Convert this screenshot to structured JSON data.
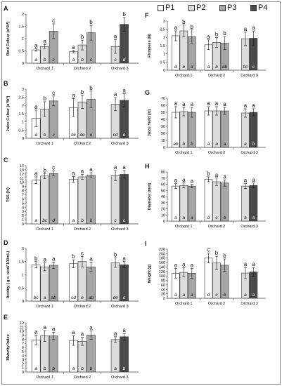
{
  "legend": [
    {
      "label": "P1",
      "color": "#ffffff"
    },
    {
      "label": "P2",
      "color": "#dcdcdc"
    },
    {
      "label": "P3",
      "color": "#a6a6a6"
    },
    {
      "label": "P4",
      "color": "#4a4a4a"
    }
  ],
  "chart_data": [
    {
      "id": "A",
      "type": "bar",
      "panel_label": "A",
      "ylabel": "Rind Colour (a*/b*)",
      "ylim": [
        0,
        2
      ],
      "yticks": [
        0,
        0.5,
        1,
        1.5,
        2
      ],
      "categories": [
        "Orchard 1",
        "Orchard 2",
        "Orchard 3"
      ],
      "series": [
        {
          "name": "P1",
          "values": [
            0.54,
            0.47,
            null
          ],
          "errors": [
            0.05,
            0.05,
            null
          ],
          "top_letters": [
            "a",
            "a",
            null
          ],
          "bottom_letters": [
            "a",
            "a",
            null
          ]
        },
        {
          "name": "P2",
          "values": [
            0.68,
            0.74,
            0.68
          ],
          "errors": [
            0.08,
            0.2,
            0.28
          ],
          "top_letters": [
            "a",
            "b",
            "a"
          ],
          "bottom_letters": [
            "b",
            "b",
            "c"
          ]
        },
        {
          "name": "P3",
          "values": [
            1.3,
            1.24,
            null
          ],
          "errors": [
            0.3,
            0.3,
            null
          ],
          "top_letters": [
            "c",
            "b",
            null
          ],
          "bottom_letters": [
            "c",
            "c",
            null
          ]
        },
        {
          "name": "P4",
          "values": [
            null,
            null,
            1.58
          ],
          "errors": [
            null,
            null,
            0.28
          ],
          "top_letters": [
            null,
            null,
            "b"
          ],
          "bottom_letters": [
            null,
            null,
            "d"
          ]
        }
      ]
    },
    {
      "id": "B",
      "type": "bar",
      "panel_label": "B",
      "ylabel": "Juice Colour (a*/b*)",
      "ylim": [
        0,
        3
      ],
      "yticks": [
        0,
        0.5,
        1,
        1.5,
        2,
        2.5,
        3
      ],
      "categories": [
        "Orchard 1",
        "Orchard 2",
        "Orchard 3"
      ],
      "series": [
        {
          "name": "P1",
          "values": [
            1.22,
            1.88,
            null
          ],
          "errors": [
            0.5,
            0.55,
            null
          ],
          "top_letters": [
            "a",
            "a",
            null
          ],
          "bottom_letters": [
            "a",
            "bc",
            null
          ]
        },
        {
          "name": "P2",
          "values": [
            1.78,
            2.22,
            2.08
          ],
          "errors": [
            0.45,
            0.4,
            0.4
          ],
          "top_letters": [
            "b",
            "b",
            "a"
          ],
          "bottom_letters": [
            "b",
            "de",
            "cd"
          ]
        },
        {
          "name": "P3",
          "values": [
            2.28,
            2.38,
            null
          ],
          "errors": [
            0.3,
            0.5,
            null
          ],
          "top_letters": [
            "c",
            "b",
            null
          ],
          "bottom_letters": [
            "c",
            "e",
            null
          ]
        },
        {
          "name": "P4",
          "values": [
            null,
            null,
            2.32
          ],
          "errors": [
            null,
            null,
            0.4
          ],
          "top_letters": [
            null,
            null,
            "a"
          ],
          "bottom_letters": [
            null,
            null,
            "e"
          ]
        }
      ]
    },
    {
      "id": "C",
      "type": "bar",
      "panel_label": "C",
      "ylabel": "TSS (%)",
      "ylim": [
        0,
        14
      ],
      "yticks": [
        0,
        1,
        2,
        3,
        4,
        5,
        6,
        7,
        8,
        9,
        10,
        11,
        12,
        13,
        14
      ],
      "categories": [
        "Orchard 1",
        "Orchard 2",
        "Orchard 3"
      ],
      "series": [
        {
          "name": "P1",
          "values": [
            10.5,
            10.7,
            null
          ],
          "errors": [
            0.8,
            0.7,
            null
          ],
          "top_letters": [
            "a",
            "a",
            null
          ],
          "bottom_letters": [
            "a",
            "a",
            null
          ]
        },
        {
          "name": "P2",
          "values": [
            11.5,
            11.3,
            11.6
          ],
          "errors": [
            0.6,
            0.6,
            1.2
          ],
          "top_letters": [
            "b",
            "a",
            "a"
          ],
          "bottom_letters": [
            "bc",
            "b",
            "c"
          ]
        },
        {
          "name": "P3",
          "values": [
            12.1,
            11.7,
            null
          ],
          "errors": [
            0.6,
            0.6,
            null
          ],
          "top_letters": [
            "c",
            "a",
            null
          ],
          "bottom_letters": [
            "d",
            "b",
            null
          ]
        },
        {
          "name": "P4",
          "values": [
            null,
            null,
            11.9
          ],
          "errors": [
            null,
            null,
            0.9
          ],
          "top_letters": [
            null,
            null,
            "a"
          ],
          "bottom_letters": [
            null,
            null,
            "c"
          ]
        }
      ]
    },
    {
      "id": "D",
      "type": "bar",
      "panel_label": "D",
      "ylabel": "Acidity ( g c. acid/ 100mL)",
      "ylim": [
        0,
        2
      ],
      "yticks": [
        0,
        0.5,
        1,
        1.5,
        2
      ],
      "categories": [
        "Orchard 1",
        "Orchard 2",
        "Orchard 3"
      ],
      "series": [
        {
          "name": "P1",
          "values": [
            1.38,
            1.42,
            null
          ],
          "errors": [
            0.12,
            0.15,
            null
          ],
          "top_letters": [
            "b",
            "b",
            null
          ],
          "bottom_letters": [
            "bc",
            "cd",
            null
          ]
        },
        {
          "name": "P2",
          "values": [
            1.3,
            1.5,
            1.46
          ],
          "errors": [
            0.15,
            0.2,
            0.18
          ],
          "top_letters": [
            "a",
            "c",
            "b"
          ],
          "bottom_letters": [
            "a",
            "e",
            "de"
          ]
        },
        {
          "name": "P3",
          "values": [
            1.36,
            1.3,
            null
          ],
          "errors": [
            0.12,
            0.18,
            null
          ],
          "top_letters": [
            "a",
            "a",
            null
          ],
          "bottom_letters": [
            "ab",
            "ab",
            null
          ]
        },
        {
          "name": "P4",
          "values": [
            null,
            null,
            1.38
          ],
          "errors": [
            null,
            null,
            0.12
          ],
          "top_letters": [
            null,
            null,
            "a"
          ],
          "bottom_letters": [
            null,
            null,
            "c"
          ]
        }
      ]
    },
    {
      "id": "E",
      "type": "bar",
      "panel_label": "E",
      "ylabel": "Maturity Index",
      "ylim": [
        0,
        12
      ],
      "yticks": [
        0,
        1,
        2,
        3,
        4,
        5,
        6,
        7,
        8,
        9,
        10,
        11,
        12
      ],
      "categories": [
        "Orchard 1",
        "Orchard 2",
        "Orchard 3"
      ],
      "series": [
        {
          "name": "P1",
          "values": [
            7.8,
            7.7,
            null
          ],
          "errors": [
            1.2,
            1.2,
            null
          ],
          "top_letters": [
            "a",
            "a",
            null
          ],
          "bottom_letters": [
            "a",
            "a",
            null
          ]
        },
        {
          "name": "P2",
          "values": [
            8.8,
            7.5,
            7.9
          ],
          "errors": [
            1.3,
            1.0,
            0.7
          ],
          "top_letters": [
            "a",
            "a",
            "a"
          ],
          "bottom_letters": [
            "b",
            "b",
            "a"
          ]
        },
        {
          "name": "P3",
          "values": [
            8.8,
            9.0,
            null
          ],
          "errors": [
            0.9,
            1.0,
            null
          ],
          "top_letters": [
            "a",
            "a",
            null
          ],
          "bottom_letters": [
            "b",
            "b",
            null
          ]
        },
        {
          "name": "P4",
          "values": [
            null,
            null,
            8.6
          ],
          "errors": [
            null,
            null,
            0.8
          ],
          "top_letters": [
            null,
            null,
            "a"
          ],
          "bottom_letters": [
            null,
            null,
            "b"
          ]
        }
      ]
    },
    {
      "id": "F",
      "type": "bar",
      "panel_label": "F",
      "ylabel": "Firmness (N)",
      "ylim": [
        0,
        3
      ],
      "yticks": [
        0,
        0.5,
        1,
        1.5,
        2,
        2.5,
        3
      ],
      "categories": [
        "Orchard 1",
        "Orchard 2",
        "Orchard 3"
      ],
      "series": [
        {
          "name": "P1",
          "values": [
            2.1,
            1.55,
            null
          ],
          "errors": [
            0.3,
            0.3,
            null
          ],
          "top_letters": [
            "a",
            "a",
            null
          ],
          "bottom_letters": [
            "d",
            "a",
            null
          ]
        },
        {
          "name": "P2",
          "values": [
            2.4,
            1.7,
            1.92
          ],
          "errors": [
            0.35,
            0.3,
            0.4
          ],
          "top_letters": [
            "b",
            "b",
            "a"
          ],
          "bottom_letters": [
            "e",
            "b",
            "bc"
          ]
        },
        {
          "name": "P3",
          "values": [
            2.05,
            1.65,
            null
          ],
          "errors": [
            0.4,
            0.4,
            null
          ],
          "top_letters": [
            "b",
            "b",
            null
          ],
          "bottom_letters": [
            "d",
            "ab",
            null
          ]
        },
        {
          "name": "P4",
          "values": [
            null,
            null,
            1.95
          ],
          "errors": [
            null,
            null,
            0.45
          ],
          "top_letters": [
            null,
            null,
            "a"
          ],
          "bottom_letters": [
            null,
            null,
            "c"
          ]
        }
      ]
    },
    {
      "id": "G",
      "type": "bar",
      "panel_label": "G",
      "ylabel": "Juice Yield (%)",
      "ylim": [
        0,
        70
      ],
      "yticks": [
        0,
        10,
        20,
        30,
        40,
        50,
        60,
        70
      ],
      "categories": [
        "Orchard 1",
        "Orchard 2",
        "Orchard 3"
      ],
      "series": [
        {
          "name": "P1",
          "values": [
            50,
            52,
            null
          ],
          "errors": [
            8,
            6,
            null
          ],
          "top_letters": [
            "a",
            "a",
            null
          ],
          "bottom_letters": [
            "ab",
            "a",
            null
          ]
        },
        {
          "name": "P2",
          "values": [
            51,
            52,
            49
          ],
          "errors": [
            6,
            6,
            6
          ],
          "top_letters": [
            "a",
            "a",
            "a"
          ],
          "bottom_letters": [
            "b",
            "a",
            "a"
          ]
        },
        {
          "name": "P3",
          "values": [
            50,
            52,
            null
          ],
          "errors": [
            7,
            5,
            null
          ],
          "top_letters": [
            "a",
            "a",
            null
          ],
          "bottom_letters": [
            "b",
            "a",
            null
          ]
        },
        {
          "name": "P4",
          "values": [
            null,
            null,
            50
          ],
          "errors": [
            null,
            null,
            5
          ],
          "top_letters": [
            null,
            null,
            "a"
          ],
          "bottom_letters": [
            null,
            null,
            "b"
          ]
        }
      ]
    },
    {
      "id": "H",
      "type": "bar",
      "panel_label": "H",
      "ylabel": "Diameter  (mm)",
      "ylim": [
        0,
        80
      ],
      "yticks": [
        0,
        10,
        20,
        30,
        40,
        50,
        60,
        70,
        80
      ],
      "categories": [
        "Orchard 1",
        "Orchard 2",
        "Orchard 3"
      ],
      "series": [
        {
          "name": "P1",
          "values": [
            57,
            68,
            null
          ],
          "errors": [
            4,
            4,
            null
          ],
          "top_letters": [
            "a",
            "b",
            null
          ],
          "bottom_letters": [
            "a",
            "d",
            null
          ]
        },
        {
          "name": "P2",
          "values": [
            58,
            64,
            57
          ],
          "errors": [
            4,
            6,
            4
          ],
          "top_letters": [
            "a",
            "a",
            "a"
          ],
          "bottom_letters": [
            "a",
            "c",
            "a"
          ]
        },
        {
          "name": "P3",
          "values": [
            57,
            62,
            null
          ],
          "errors": [
            3,
            5,
            null
          ],
          "top_letters": [
            "a",
            "a",
            null
          ],
          "bottom_letters": [
            "a",
            "b",
            null
          ]
        },
        {
          "name": "P4",
          "values": [
            null,
            null,
            58
          ],
          "errors": [
            null,
            null,
            4
          ],
          "top_letters": [
            null,
            null,
            "a"
          ],
          "bottom_letters": [
            null,
            null,
            "a"
          ]
        }
      ]
    },
    {
      "id": "I",
      "type": "bar",
      "panel_label": "I",
      "ylabel": "Weight (g)",
      "ylim": [
        0,
        220
      ],
      "yticks": [
        0,
        20,
        40,
        60,
        80,
        100,
        120,
        140,
        160,
        180,
        200,
        220
      ],
      "categories": [
        "Orchard 1",
        "Orchard 2",
        "Orchard 3"
      ],
      "series": [
        {
          "name": "P1",
          "values": [
            112,
            180,
            null
          ],
          "errors": [
            22,
            22,
            null
          ],
          "top_letters": [
            "a",
            "c",
            null
          ],
          "bottom_letters": [
            "a",
            "d",
            null
          ]
        },
        {
          "name": "P2",
          "values": [
            116,
            158,
            113
          ],
          "errors": [
            20,
            30,
            25
          ],
          "top_letters": [
            "a",
            "b",
            "a"
          ],
          "bottom_letters": [
            "a",
            "c",
            "a"
          ]
        },
        {
          "name": "P3",
          "values": [
            112,
            148,
            null
          ],
          "errors": [
            22,
            28,
            null
          ],
          "top_letters": [
            "a",
            "b",
            null
          ],
          "bottom_letters": [
            "a",
            "b",
            null
          ]
        },
        {
          "name": "P4",
          "values": [
            null,
            null,
            118
          ],
          "errors": [
            null,
            null,
            20
          ],
          "top_letters": [
            null,
            null,
            "a"
          ],
          "bottom_letters": [
            null,
            null,
            "a"
          ]
        }
      ]
    }
  ]
}
